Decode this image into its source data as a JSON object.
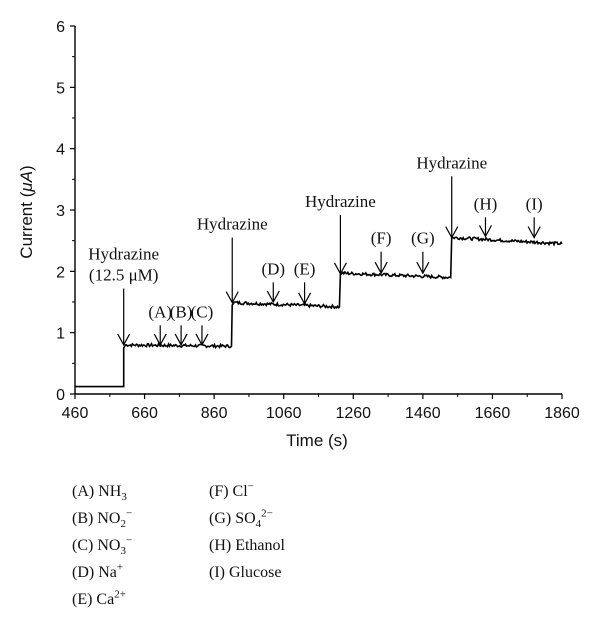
{
  "chart_data": {
    "type": "line",
    "xlabel": "Time (s)",
    "ylabel_main": "Current (",
    "ylabel_mu": "μA",
    "ylabel_end": ")",
    "xlim": [
      460,
      1860
    ],
    "ylim": [
      0,
      6
    ],
    "xticks": [
      460,
      660,
      860,
      1060,
      1260,
      1460,
      1660,
      1860
    ],
    "yticks": [
      0,
      1,
      2,
      3,
      4,
      5,
      6
    ],
    "x": [
      460,
      600,
      600,
      605,
      910,
      912,
      918,
      1220,
      1223,
      1230,
      1540,
      1543,
      1550,
      1860
    ],
    "y": [
      0.12,
      0.12,
      0.75,
      0.8,
      0.78,
      1.45,
      1.49,
      1.42,
      1.95,
      1.97,
      1.9,
      2.55,
      2.55,
      2.45
    ],
    "series_color": "#000000",
    "grid": false,
    "annotations": [
      {
        "lines": [
          "Hydrazine",
          "(12.5 μM)"
        ],
        "x": 600,
        "y_from": 1.72,
        "y_to": 0.8
      },
      {
        "lines": [
          "(A)"
        ],
        "x": 705,
        "y_from": 1.12,
        "y_to": 0.8
      },
      {
        "lines": [
          "(B)"
        ],
        "x": 765,
        "y_from": 1.12,
        "y_to": 0.8
      },
      {
        "lines": [
          "(C)"
        ],
        "x": 825,
        "y_from": 1.12,
        "y_to": 0.8
      },
      {
        "lines": [
          "Hydrazine"
        ],
        "x": 912,
        "y_from": 2.55,
        "y_to": 1.49
      },
      {
        "lines": [
          "(D)"
        ],
        "x": 1030,
        "y_from": 1.82,
        "y_to": 1.5
      },
      {
        "lines": [
          "(E)"
        ],
        "x": 1120,
        "y_from": 1.82,
        "y_to": 1.47
      },
      {
        "lines": [
          "Hydrazine"
        ],
        "x": 1223,
        "y_from": 2.92,
        "y_to": 1.96
      },
      {
        "lines": [
          "(F)"
        ],
        "x": 1340,
        "y_from": 2.32,
        "y_to": 1.97
      },
      {
        "lines": [
          "(G)"
        ],
        "x": 1460,
        "y_from": 2.32,
        "y_to": 1.97
      },
      {
        "lines": [
          "Hydrazine"
        ],
        "x": 1543,
        "y_from": 3.55,
        "y_to": 2.55
      },
      {
        "lines": [
          "(H)"
        ],
        "x": 1640,
        "y_from": 2.88,
        "y_to": 2.57
      },
      {
        "lines": [
          "(I)"
        ],
        "x": 1780,
        "y_from": 2.88,
        "y_to": 2.55
      }
    ]
  },
  "legend": {
    "col1": [
      {
        "label": "(A) NH",
        "sub": "3",
        "sup": ""
      },
      {
        "label": "(B) NO",
        "sub": "2",
        "sup": "−"
      },
      {
        "label": "(C) NO",
        "sub": "3",
        "sup": "−"
      },
      {
        "label": "(D) Na",
        "sub": "",
        "sup": "+"
      },
      {
        "label": "(E) Ca",
        "sub": "",
        "sup": "2+"
      }
    ],
    "col2": [
      {
        "label": "(F) Cl",
        "sub": "",
        "sup": "−"
      },
      {
        "label": "(G) SO",
        "sub": "4",
        "sup": "2−"
      },
      {
        "label": "(H) Ethanol",
        "sub": "",
        "sup": ""
      },
      {
        "label": "(I) Glucose",
        "sub": "",
        "sup": ""
      }
    ]
  }
}
